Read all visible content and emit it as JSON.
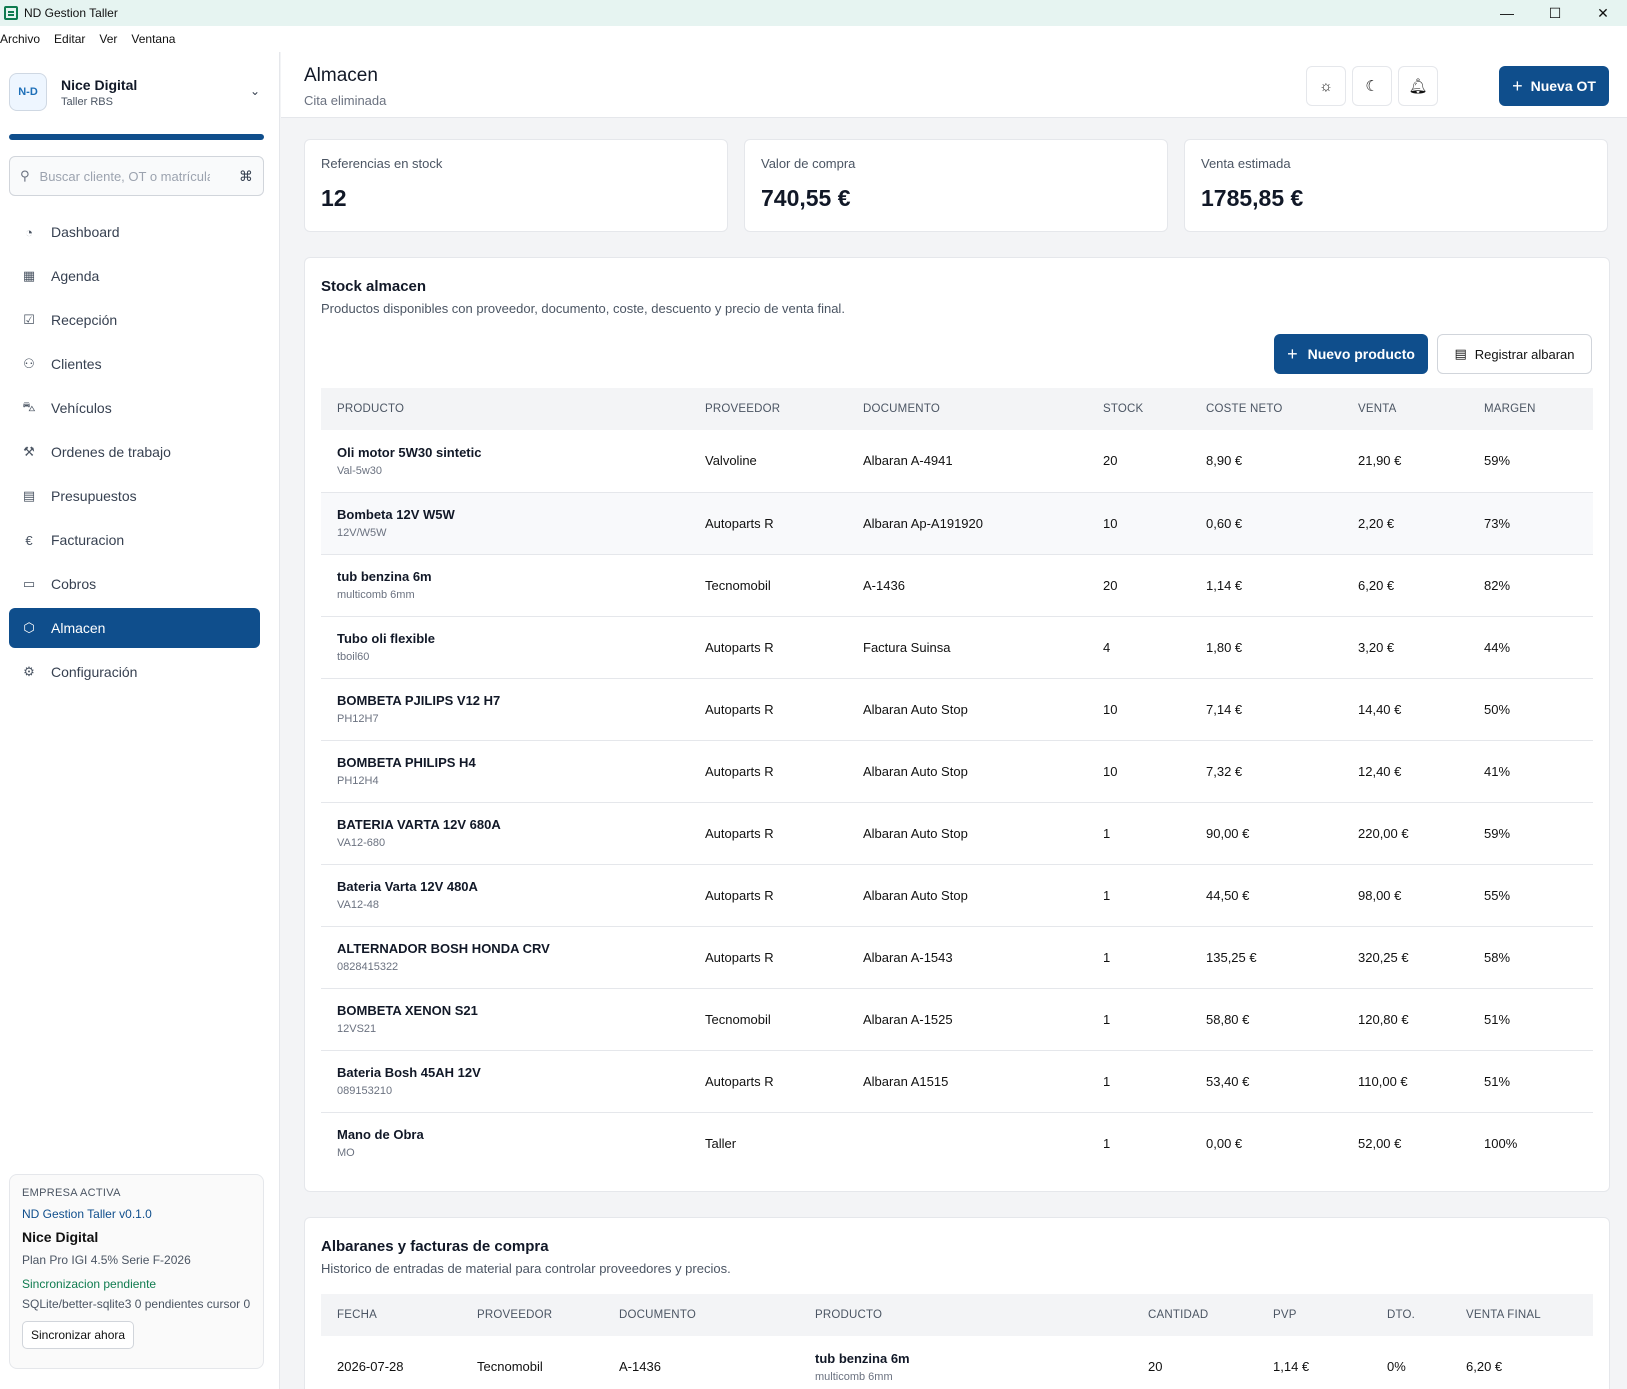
{
  "window": {
    "title": "ND Gestion Taller",
    "minimize": "—",
    "maximize": "☐",
    "close": "✕"
  },
  "menu": [
    "Archivo",
    "Editar",
    "Ver",
    "Ventana"
  ],
  "brand": {
    "logo": "N-D",
    "name": "Nice Digital",
    "sub": "Taller RBS"
  },
  "search": {
    "placeholder": "Buscar cliente, OT o matrícula",
    "shortcut": "⌘"
  },
  "nav": [
    {
      "label": "Dashboard",
      "icon": "gauge-icon"
    },
    {
      "label": "Agenda",
      "icon": "calendar-icon"
    },
    {
      "label": "Recepción",
      "icon": "clipboard-icon"
    },
    {
      "label": "Clientes",
      "icon": "users-icon"
    },
    {
      "label": "Vehículos",
      "icon": "car-icon"
    },
    {
      "label": "Ordenes de trabajo",
      "icon": "wrench-icon"
    },
    {
      "label": "Presupuestos",
      "icon": "file-icon"
    },
    {
      "label": "Facturacion",
      "icon": "euro-icon"
    },
    {
      "label": "Cobros",
      "icon": "banknote-icon"
    },
    {
      "label": "Almacen",
      "icon": "package-icon",
      "active": true
    },
    {
      "label": "Configuración",
      "icon": "gear-icon"
    }
  ],
  "company": {
    "heading": "EMPRESA ACTIVA",
    "version": "ND Gestion Taller v0.1.0",
    "name": "Nice Digital",
    "plan": "Plan Pro IGI 4.5% Serie F-2026",
    "sync_status": "Sincronizacion pendiente",
    "db": "SQLite/better-sqlite3 0 pendientes cursor 0",
    "sync_button": "Sincronizar ahora"
  },
  "header": {
    "title": "Almacen",
    "subtitle": "Cita eliminada",
    "new_ot": "Nueva OT"
  },
  "stats": [
    {
      "label": "Referencias en stock",
      "value": "12"
    },
    {
      "label": "Valor de compra",
      "value": "740,55 €"
    },
    {
      "label": "Venta estimada",
      "value": "1785,85 €"
    }
  ],
  "stock": {
    "title": "Stock almacen",
    "subtitle": "Productos disponibles con proveedor, documento, coste, descuento y precio de venta final.",
    "new_product": "Nuevo producto",
    "register": "Registrar albaran",
    "columns": [
      "PRODUCTO",
      "PROVEEDOR",
      "DOCUMENTO",
      "STOCK",
      "COSTE NETO",
      "VENTA",
      "MARGEN"
    ],
    "rows": [
      {
        "name": "Oli motor 5W30 sintetic",
        "code": "Val-5w30",
        "provider": "Valvoline",
        "doc": "Albaran A-4941",
        "stock": "20",
        "cost": "8,90 €",
        "sale": "21,90 €",
        "margin": "59%"
      },
      {
        "name": "Bombeta 12V W5W",
        "code": "12V/W5W",
        "provider": "Autoparts R",
        "doc": "Albaran Ap-A191920",
        "stock": "10",
        "cost": "0,60 €",
        "sale": "2,20 €",
        "margin": "73%"
      },
      {
        "name": "tub benzina 6m",
        "code": "multicomb 6mm",
        "provider": "Tecnomobil",
        "doc": "A-1436",
        "stock": "20",
        "cost": "1,14 €",
        "sale": "6,20 €",
        "margin": "82%"
      },
      {
        "name": "Tubo oli flexible",
        "code": "tboil60",
        "provider": "Autoparts R",
        "doc": "Factura Suinsa",
        "stock": "4",
        "cost": "1,80 €",
        "sale": "3,20 €",
        "margin": "44%"
      },
      {
        "name": "BOMBETA PJILIPS V12 H7",
        "code": "PH12H7",
        "provider": "Autoparts R",
        "doc": "Albaran Auto Stop",
        "stock": "10",
        "cost": "7,14 €",
        "sale": "14,40 €",
        "margin": "50%"
      },
      {
        "name": "BOMBETA PHILIPS H4",
        "code": "PH12H4",
        "provider": "Autoparts R",
        "doc": "Albaran Auto Stop",
        "stock": "10",
        "cost": "7,32 €",
        "sale": "12,40 €",
        "margin": "41%"
      },
      {
        "name": "BATERIA VARTA 12V 680A",
        "code": "VA12-680",
        "provider": "Autoparts R",
        "doc": "Albaran Auto Stop",
        "stock": "1",
        "cost": "90,00 €",
        "sale": "220,00 €",
        "margin": "59%"
      },
      {
        "name": "Bateria Varta 12V 480A",
        "code": "VA12-48",
        "provider": "Autoparts R",
        "doc": "Albaran Auto Stop",
        "stock": "1",
        "cost": "44,50 €",
        "sale": "98,00 €",
        "margin": "55%"
      },
      {
        "name": "ALTERNADOR BOSH HONDA CRV",
        "code": "0828415322",
        "provider": "Autoparts R",
        "doc": "Albaran A-1543",
        "stock": "1",
        "cost": "135,25 €",
        "sale": "320,25 €",
        "margin": "58%"
      },
      {
        "name": "BOMBETA XENON S21",
        "code": "12VS21",
        "provider": "Tecnomobil",
        "doc": "Albaran A-1525",
        "stock": "1",
        "cost": "58,80 €",
        "sale": "120,80 €",
        "margin": "51%"
      },
      {
        "name": "Bateria Bosh 45AH 12V",
        "code": "089153210",
        "provider": "Autoparts R",
        "doc": "Albaran A1515",
        "stock": "1",
        "cost": "53,40 €",
        "sale": "110,00 €",
        "margin": "51%"
      },
      {
        "name": "Mano de Obra",
        "code": "MO",
        "provider": "Taller",
        "doc": "",
        "stock": "1",
        "cost": "0,00 €",
        "sale": "52,00 €",
        "margin": "100%"
      }
    ]
  },
  "purchases": {
    "title": "Albaranes y facturas de compra",
    "subtitle": "Historico de entradas de material para controlar proveedores y precios.",
    "columns": [
      "FECHA",
      "PROVEEDOR",
      "DOCUMENTO",
      "PRODUCTO",
      "CANTIDAD",
      "PVP",
      "DTO.",
      "VENTA FINAL"
    ],
    "rows": [
      {
        "date": "2026-07-28",
        "provider": "Tecnomobil",
        "doc": "A-1436",
        "product": "tub benzina 6m",
        "code": "multicomb 6mm",
        "qty": "20",
        "pvp": "1,14 €",
        "dto": "0%",
        "final": "6,20 €"
      }
    ]
  }
}
